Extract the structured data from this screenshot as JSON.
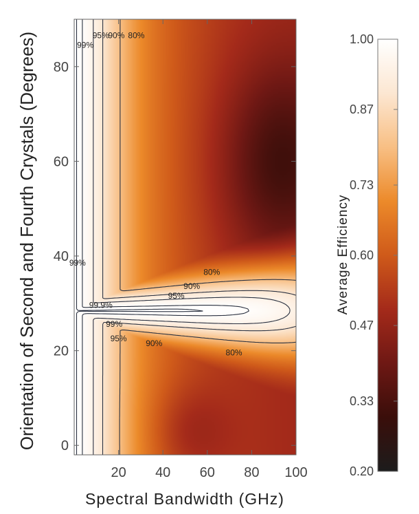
{
  "chart_data": {
    "type": "heatmap",
    "title": "",
    "xlabel": "Spectral Bandwidth (GHz)",
    "ylabel": "Orientation of Second and Fourth Crystals (Degrees)",
    "xlim": [
      0,
      100
    ],
    "ylim": [
      -2,
      90
    ],
    "x_ticks": [
      "20",
      "40",
      "60",
      "80",
      "100"
    ],
    "x_tick_values": [
      20,
      40,
      60,
      80,
      100
    ],
    "y_ticks": [
      "0",
      "20",
      "40",
      "60",
      "80"
    ],
    "y_tick_values": [
      0,
      20,
      40,
      60,
      80
    ],
    "colorbar": {
      "label": "Average Efficiency",
      "ticks": [
        "1.00",
        "0.87",
        "0.73",
        "0.60",
        "0.47",
        "0.33",
        "0.20"
      ],
      "tick_values": [
        1.0,
        0.87,
        0.73,
        0.6,
        0.47,
        0.33,
        0.2
      ],
      "range": [
        0.2,
        1.0
      ],
      "colormap": [
        "#1c1c1c",
        "#3a0e0a",
        "#6e1814",
        "#a42a1a",
        "#cf5a1a",
        "#ec8a2a",
        "#f8bf84",
        "#fce7d2",
        "#ffffff"
      ]
    },
    "contours": [
      {
        "label": "80%",
        "level": 0.8
      },
      {
        "label": "90%",
        "level": 0.9
      },
      {
        "label": "95%",
        "level": 0.95
      },
      {
        "label": "99%",
        "level": 0.99
      },
      {
        "label": "99.9%",
        "level": 0.999
      }
    ],
    "contour_label_positions": [
      {
        "label": "99%",
        "x": 5,
        "y": 84
      },
      {
        "label": "95%",
        "x": 12,
        "y": 86
      },
      {
        "label": "90%",
        "x": 19,
        "y": 86
      },
      {
        "label": "80%",
        "x": 28,
        "y": 86
      },
      {
        "label": "99%",
        "x": 1.5,
        "y": 38
      },
      {
        "label": "80%",
        "x": 62,
        "y": 36
      },
      {
        "label": "90%",
        "x": 53,
        "y": 33
      },
      {
        "label": "95%",
        "x": 46,
        "y": 31
      },
      {
        "label": "99.9%",
        "x": 12,
        "y": 29
      },
      {
        "label": "99%",
        "x": 18,
        "y": 25
      },
      {
        "label": "95%",
        "x": 20,
        "y": 22
      },
      {
        "label": "90%",
        "x": 36,
        "y": 21
      },
      {
        "label": "80%",
        "x": 72,
        "y": 19
      }
    ]
  }
}
